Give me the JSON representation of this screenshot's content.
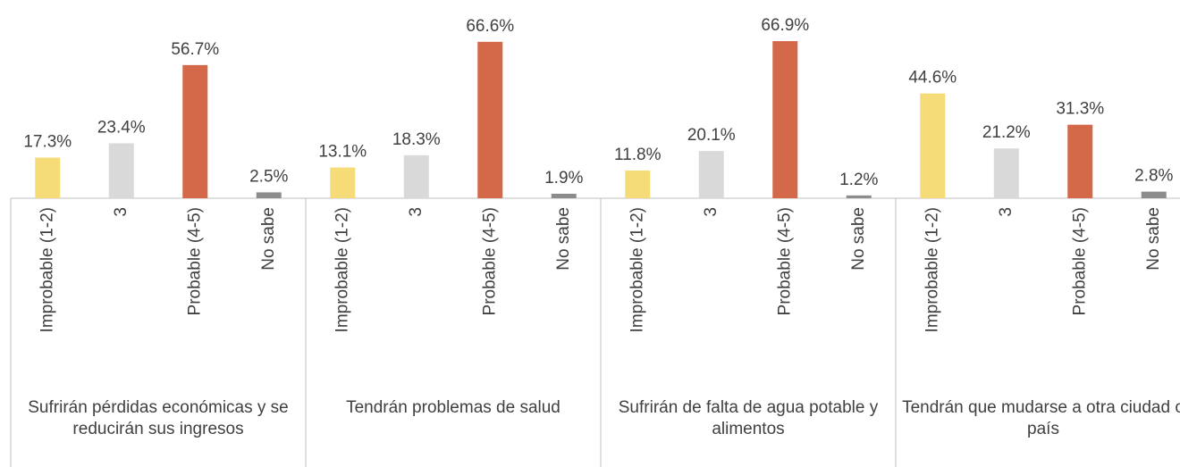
{
  "chart_data": {
    "type": "bar",
    "categories": [
      "Improbable (1-2)",
      "3",
      "Probable (4-5)",
      "No sabe"
    ],
    "colors": [
      "#f5dc78",
      "#d9d9d9",
      "#d4694a",
      "#8c8c8c"
    ],
    "groups": [
      {
        "name": "Sufrirán pérdidas económicas y se reducirán sus ingresos",
        "values": [
          17.3,
          23.4,
          56.7,
          2.5
        ],
        "value_labels": [
          "17.3%",
          "23.4%",
          "56.7%",
          "2.5%"
        ]
      },
      {
        "name": "Tendrán problemas de salud",
        "values": [
          13.1,
          18.3,
          66.6,
          1.9
        ],
        "value_labels": [
          "13.1%",
          "18.3%",
          "66.6%",
          "1.9%"
        ]
      },
      {
        "name": "Sufrirán de falta de agua potable y alimentos",
        "values": [
          11.8,
          20.1,
          66.9,
          1.2
        ],
        "value_labels": [
          "11.8%",
          "20.1%",
          "66.9%",
          "1.2%"
        ]
      },
      {
        "name": "Tendrán que mudarse a otra ciudad o país",
        "values": [
          44.6,
          21.2,
          31.3,
          2.8
        ],
        "value_labels": [
          "44.6%",
          "21.2%",
          "31.3%",
          "2.8%"
        ]
      }
    ]
  }
}
